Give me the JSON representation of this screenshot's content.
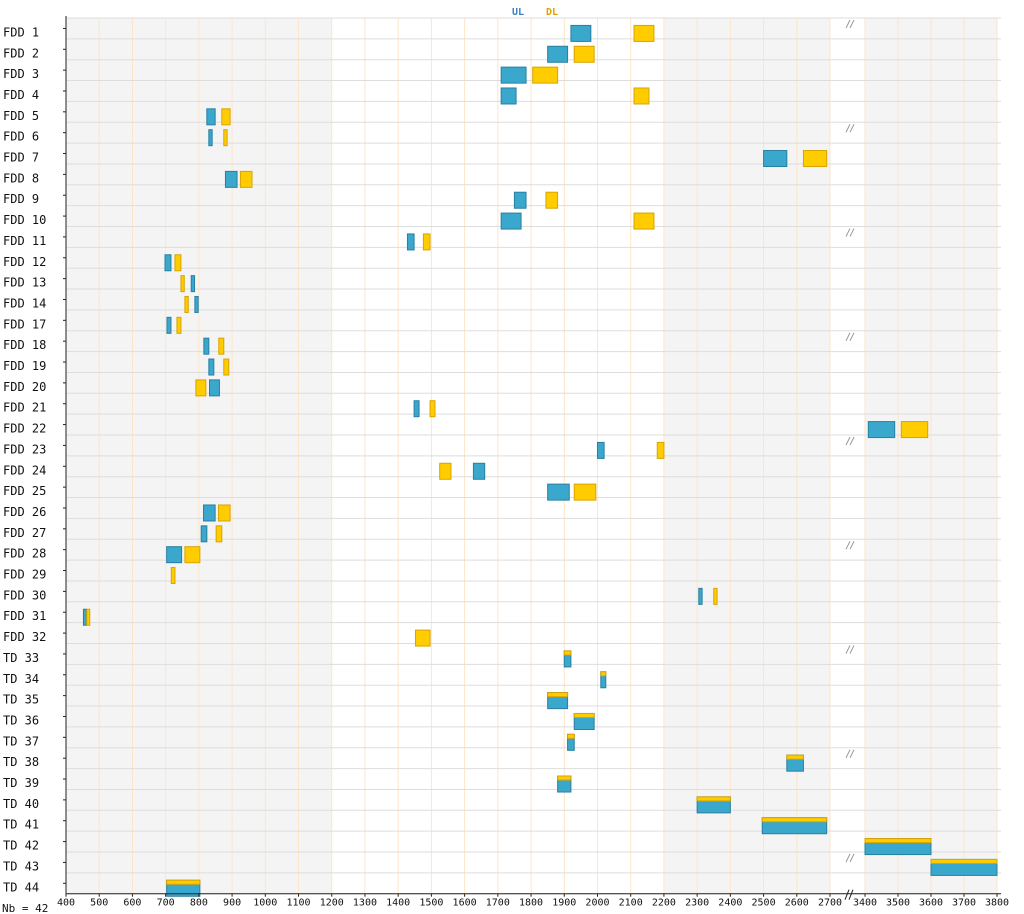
{
  "legend": {
    "ul": "UL",
    "dl": "DL"
  },
  "footer": {
    "count_label": "Nb = 42"
  },
  "colors": {
    "ul_fill": "#3aa8cc",
    "ul_stroke": "#2a7fa0",
    "dl_fill": "#ffcc00",
    "dl_stroke": "#d9a400",
    "shade": "#f4f4f4",
    "grid_v": "#fde5c8",
    "grid_h": "#dddddd"
  },
  "chart_data": {
    "type": "range-bar",
    "x_ticks": [
      "400",
      "500",
      "600",
      "700",
      "800",
      "900",
      "1000",
      "1100",
      "1200",
      "1300",
      "1400",
      "1500",
      "1600",
      "1700",
      "1800",
      "1900",
      "2000",
      "2100",
      "2200",
      "2300",
      "2400",
      "2500",
      "2600",
      "2700",
      "3400",
      "3500",
      "3600",
      "3700",
      "3800"
    ],
    "x_unit": "MHz",
    "axis_break": [
      2700,
      3400
    ],
    "shaded_ranges": [
      [
        400,
        1200
      ],
      [
        2200,
        2700
      ],
      [
        3400,
        3800
      ]
    ],
    "bands": [
      {
        "label": "FDD  1",
        "duplex": "FDD",
        "ul": [
          1920,
          1980
        ],
        "dl": [
          2110,
          2170
        ]
      },
      {
        "label": "FDD  2",
        "duplex": "FDD",
        "ul": [
          1850,
          1910
        ],
        "dl": [
          1930,
          1990
        ]
      },
      {
        "label": "FDD  3",
        "duplex": "FDD",
        "ul": [
          1710,
          1785
        ],
        "dl": [
          1805,
          1880
        ]
      },
      {
        "label": "FDD  4",
        "duplex": "FDD",
        "ul": [
          1710,
          1755
        ],
        "dl": [
          2110,
          2155
        ]
      },
      {
        "label": "FDD  5",
        "duplex": "FDD",
        "ul": [
          824,
          849
        ],
        "dl": [
          869,
          894
        ]
      },
      {
        "label": "FDD  6",
        "duplex": "FDD",
        "ul": [
          830,
          840
        ],
        "dl": [
          875,
          885
        ]
      },
      {
        "label": "FDD  7",
        "duplex": "FDD",
        "ul": [
          2500,
          2570
        ],
        "dl": [
          2620,
          2690
        ]
      },
      {
        "label": "FDD  8",
        "duplex": "FDD",
        "ul": [
          880,
          915
        ],
        "dl": [
          925,
          960
        ]
      },
      {
        "label": "FDD  9",
        "duplex": "FDD",
        "ul": [
          1749.9,
          1784.9
        ],
        "dl": [
          1844.9,
          1879.9
        ]
      },
      {
        "label": "FDD  10",
        "duplex": "FDD",
        "ul": [
          1710,
          1770
        ],
        "dl": [
          2110,
          2170
        ]
      },
      {
        "label": "FDD  11",
        "duplex": "FDD",
        "ul": [
          1427.9,
          1447.9
        ],
        "dl": [
          1475.9,
          1495.9
        ]
      },
      {
        "label": "FDD  12",
        "duplex": "FDD",
        "ul": [
          698,
          716
        ],
        "dl": [
          728,
          746
        ]
      },
      {
        "label": "FDD  13",
        "duplex": "FDD",
        "ul": [
          777,
          787
        ],
        "dl": [
          746,
          756
        ]
      },
      {
        "label": "FDD  14",
        "duplex": "FDD",
        "ul": [
          788,
          798
        ],
        "dl": [
          758,
          768
        ]
      },
      {
        "label": "FDD  17",
        "duplex": "FDD",
        "ul": [
          704,
          716
        ],
        "dl": [
          734,
          746
        ]
      },
      {
        "label": "FDD  18",
        "duplex": "FDD",
        "ul": [
          815,
          830
        ],
        "dl": [
          860,
          875
        ]
      },
      {
        "label": "FDD  19",
        "duplex": "FDD",
        "ul": [
          830,
          845
        ],
        "dl": [
          875,
          890
        ]
      },
      {
        "label": "FDD  20",
        "duplex": "FDD",
        "ul": [
          832,
          862
        ],
        "dl": [
          791,
          821
        ]
      },
      {
        "label": "FDD  21",
        "duplex": "FDD",
        "ul": [
          1447.9,
          1462.9
        ],
        "dl": [
          1495.9,
          1510.9
        ]
      },
      {
        "label": "FDD  22",
        "duplex": "FDD",
        "ul": [
          3410,
          3490
        ],
        "dl": [
          3510,
          3590
        ]
      },
      {
        "label": "FDD  23",
        "duplex": "FDD",
        "ul": [
          2000,
          2020
        ],
        "dl": [
          2180,
          2200
        ]
      },
      {
        "label": "FDD  24",
        "duplex": "FDD",
        "ul": [
          1626.5,
          1660.5
        ],
        "dl": [
          1525,
          1559
        ]
      },
      {
        "label": "FDD  25",
        "duplex": "FDD",
        "ul": [
          1850,
          1915
        ],
        "dl": [
          1930,
          1995
        ]
      },
      {
        "label": "FDD  26",
        "duplex": "FDD",
        "ul": [
          814,
          849
        ],
        "dl": [
          859,
          894
        ]
      },
      {
        "label": "FDD  27",
        "duplex": "FDD",
        "ul": [
          807,
          824
        ],
        "dl": [
          852,
          869
        ]
      },
      {
        "label": "FDD  28",
        "duplex": "FDD",
        "ul": [
          703,
          748
        ],
        "dl": [
          758,
          803
        ]
      },
      {
        "label": "FDD  29",
        "duplex": "FDD",
        "ul": null,
        "dl": [
          717,
          728
        ]
      },
      {
        "label": "FDD  30",
        "duplex": "FDD",
        "ul": [
          2305,
          2315
        ],
        "dl": [
          2350,
          2360
        ]
      },
      {
        "label": "FDD  31",
        "duplex": "FDD",
        "ul": [
          452.5,
          457.5
        ],
        "dl": [
          462.5,
          467.5
        ]
      },
      {
        "label": "FDD  32",
        "duplex": "FDD",
        "ul": null,
        "dl": [
          1452,
          1496
        ]
      },
      {
        "label": "TD   33",
        "duplex": "TDD",
        "range": [
          1900,
          1920
        ]
      },
      {
        "label": "TD   34",
        "duplex": "TDD",
        "range": [
          2010,
          2025
        ]
      },
      {
        "label": "TD   35",
        "duplex": "TDD",
        "range": [
          1850,
          1910
        ]
      },
      {
        "label": "TD   36",
        "duplex": "TDD",
        "range": [
          1930,
          1990
        ]
      },
      {
        "label": "TD   37",
        "duplex": "TDD",
        "range": [
          1910,
          1930
        ]
      },
      {
        "label": "TD   38",
        "duplex": "TDD",
        "range": [
          2570,
          2620
        ]
      },
      {
        "label": "TD   39",
        "duplex": "TDD",
        "range": [
          1880,
          1920
        ]
      },
      {
        "label": "TD   40",
        "duplex": "TDD",
        "range": [
          2300,
          2400
        ]
      },
      {
        "label": "TD   41",
        "duplex": "TDD",
        "range": [
          2496,
          2690
        ]
      },
      {
        "label": "TD   42",
        "duplex": "TDD",
        "range": [
          3400,
          3600
        ]
      },
      {
        "label": "TD   43",
        "duplex": "TDD",
        "range": [
          3600,
          3800
        ]
      },
      {
        "label": "TD   44",
        "duplex": "TDD",
        "range": [
          703,
          803
        ]
      }
    ]
  }
}
